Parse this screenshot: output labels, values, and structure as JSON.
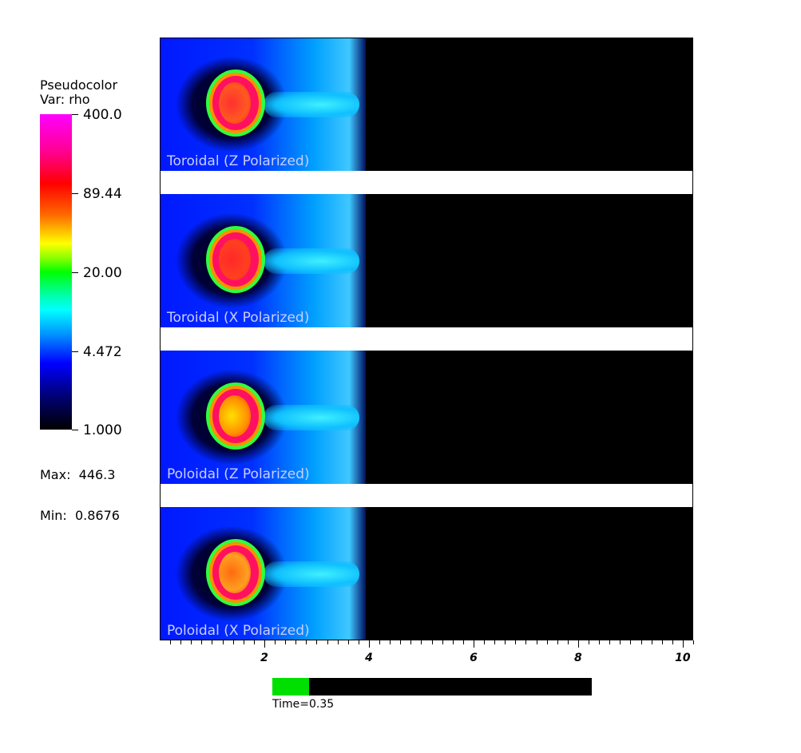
{
  "chart_data": {
    "type": "heatmap",
    "legend": {
      "title_line1": "Pseudocolor",
      "title_line2": "Var: rho",
      "ticks": [
        "400.0",
        "89.44",
        "20.00",
        "4.472",
        "1.000"
      ],
      "max_label": "Max:  446.3",
      "min_label": "Min:  0.8676",
      "scale": "log"
    },
    "panels": [
      {
        "label": "Toroidal (Z Polarized)"
      },
      {
        "label": "Toroidal (X Polarized)"
      },
      {
        "label": "Poloidal (Z Polarized)"
      },
      {
        "label": "Poloidal (X Polarized)"
      }
    ],
    "x_axis": {
      "range": [
        0,
        10.2
      ],
      "major_ticks": [
        2,
        4,
        6,
        8,
        10
      ],
      "minor_step": 0.2
    },
    "time": {
      "label": "Time=0.35",
      "progress": 0.115
    }
  }
}
